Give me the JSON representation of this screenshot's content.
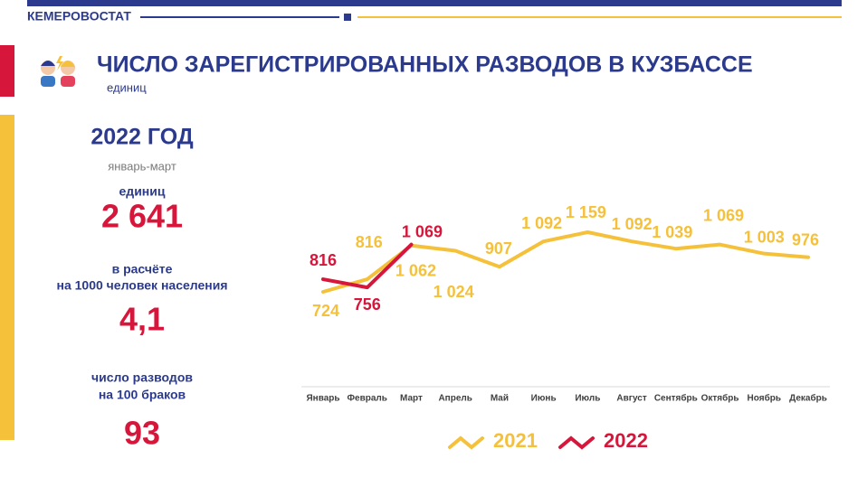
{
  "header": {
    "brand": "КЕМЕРОВОСТАТ"
  },
  "title": "ЧИСЛО ЗАРЕГИСТРИРОВАННЫХ РАЗВОДОВ В КУЗБАССЕ",
  "subtitle": "единиц",
  "summary": {
    "year": "2022 ГОД",
    "period": "январь-март",
    "count_label": "единиц",
    "count": "2 641",
    "rate_label": [
      "в расчёте",
      "на 1000 человек населения"
    ],
    "rate": "4,1",
    "ratio_label": [
      "число разводов",
      "на 100 браков"
    ],
    "ratio": "93"
  },
  "chart_data": {
    "type": "line",
    "categories": [
      "Январь",
      "Февраль",
      "Март",
      "Апрель",
      "Май",
      "Июнь",
      "Июль",
      "Август",
      "Сентябрь",
      "Октябрь",
      "Ноябрь",
      "Декабрь"
    ],
    "series": [
      {
        "name": "2021",
        "color": "#f5c13b",
        "values": [
          724,
          816,
          1062,
          1024,
          907,
          1092,
          1159,
          1092,
          1039,
          1069,
          1003,
          976
        ],
        "value_labels": [
          "724",
          "816",
          "1 062",
          "1 024",
          "907",
          "1 092",
          "1 159",
          "1 092",
          "1 039",
          "1 069",
          "1 003",
          "976"
        ]
      },
      {
        "name": "2022",
        "color": "#d6163b",
        "values": [
          816,
          756,
          1069,
          null,
          null,
          null,
          null,
          null,
          null,
          null,
          null,
          null
        ],
        "value_labels": [
          "816",
          "756",
          "1 069",
          null,
          null,
          null,
          null,
          null,
          null,
          null,
          null,
          null
        ]
      }
    ]
  }
}
